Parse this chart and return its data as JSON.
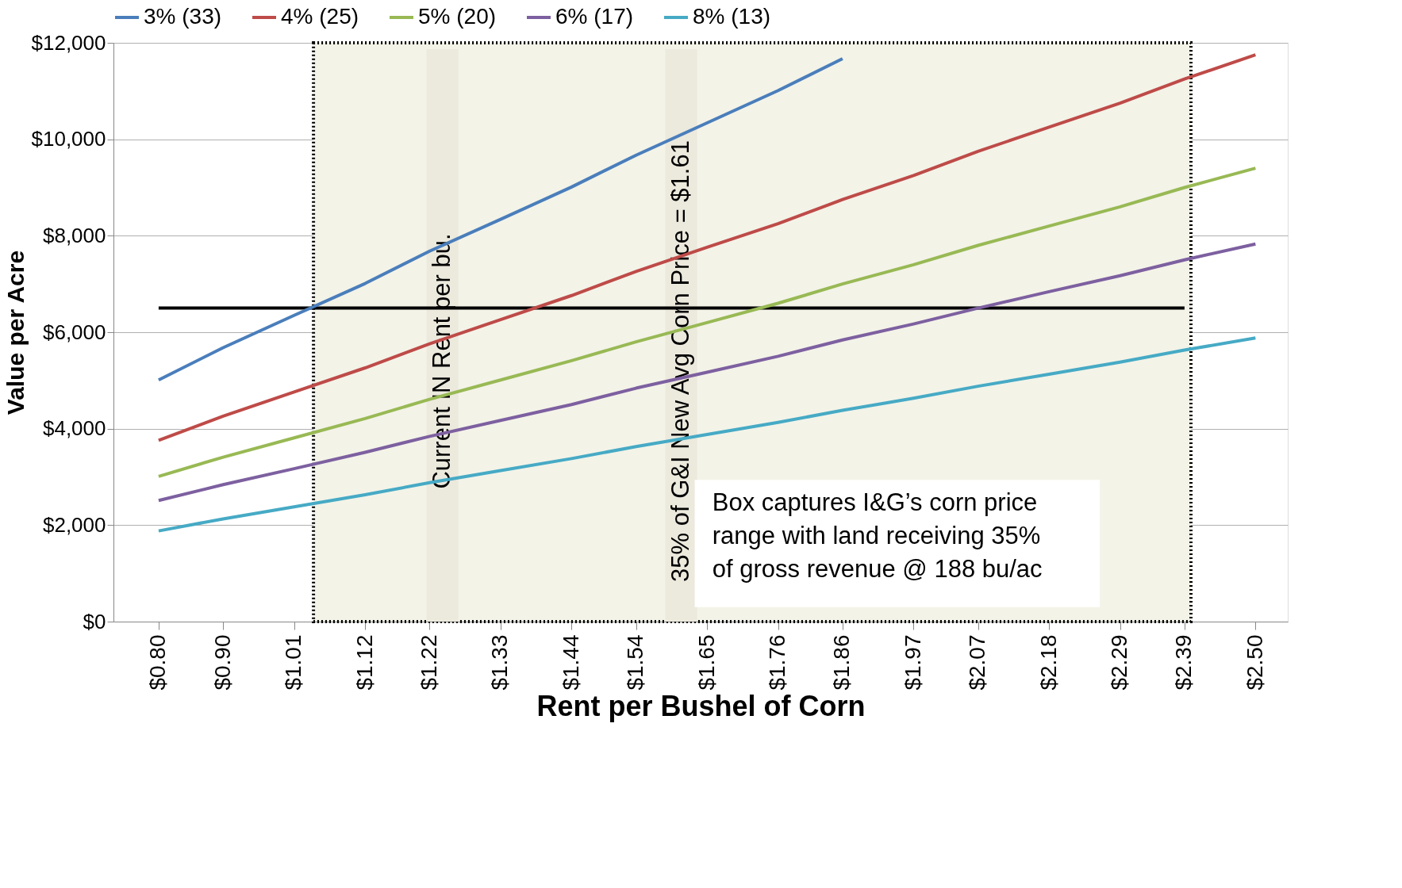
{
  "chart_data": {
    "type": "line",
    "xlabel": "Rent per Bushel of Corn",
    "ylabel": "Value per Acre",
    "x": [
      0.8,
      0.9,
      1.01,
      1.12,
      1.22,
      1.33,
      1.44,
      1.54,
      1.65,
      1.76,
      1.86,
      1.97,
      2.07,
      2.18,
      2.29,
      2.39,
      2.5
    ],
    "xlim": [
      0.73,
      2.55
    ],
    "xticks": [
      {
        "value": 0.8,
        "label": "$0.80"
      },
      {
        "value": 0.9,
        "label": "$0.90"
      },
      {
        "value": 1.01,
        "label": "$1.01"
      },
      {
        "value": 1.12,
        "label": "$1.12"
      },
      {
        "value": 1.22,
        "label": "$1.22"
      },
      {
        "value": 1.33,
        "label": "$1.33"
      },
      {
        "value": 1.44,
        "label": "$1.44"
      },
      {
        "value": 1.54,
        "label": "$1.54"
      },
      {
        "value": 1.65,
        "label": "$1.65"
      },
      {
        "value": 1.76,
        "label": "$1.76"
      },
      {
        "value": 1.86,
        "label": "$1.86"
      },
      {
        "value": 1.97,
        "label": "$1.97"
      },
      {
        "value": 2.07,
        "label": "$2.07"
      },
      {
        "value": 2.18,
        "label": "$2.18"
      },
      {
        "value": 2.29,
        "label": "$2.29"
      },
      {
        "value": 2.39,
        "label": "$2.39"
      },
      {
        "value": 2.5,
        "label": "$2.50"
      }
    ],
    "ylim": [
      0,
      12000
    ],
    "yticks": [
      {
        "value": 0,
        "label": "$0"
      },
      {
        "value": 2000,
        "label": "$2,000"
      },
      {
        "value": 4000,
        "label": "$4,000"
      },
      {
        "value": 6000,
        "label": "$6,000"
      },
      {
        "value": 8000,
        "label": "$8,000"
      },
      {
        "value": 10000,
        "label": "$10,000"
      },
      {
        "value": 12000,
        "label": "$12,000"
      }
    ],
    "grid": "y",
    "legend": "top",
    "marker": "none",
    "line_style": "solid",
    "series": [
      {
        "name": "3% (33)",
        "color": "#4a7ebb",
        "values": [
          5010,
          5680,
          6350,
          7010,
          7680,
          8340,
          9010,
          9670,
          10340,
          11010,
          11670,
          null,
          null,
          null,
          null,
          null,
          null
        ]
      },
      {
        "name": "4% (25)",
        "color": "#be4b48",
        "values": [
          3760,
          4260,
          4760,
          5260,
          5760,
          6260,
          6760,
          7260,
          7760,
          8250,
          8750,
          9250,
          9750,
          10250,
          10750,
          11250,
          11750
        ]
      },
      {
        "name": "5% (20)",
        "color": "#98b954",
        "values": [
          3010,
          3410,
          3810,
          4210,
          4610,
          5010,
          5410,
          5800,
          6200,
          6600,
          7000,
          7400,
          7800,
          8200,
          8600,
          9000,
          9400
        ]
      },
      {
        "name": "6% (17)",
        "color": "#7d60a0",
        "values": [
          2510,
          2840,
          3170,
          3510,
          3840,
          4170,
          4500,
          4840,
          5170,
          5500,
          5840,
          6170,
          6500,
          6840,
          7170,
          7500,
          7830
        ]
      },
      {
        "name": "8% (13)",
        "color": "#46aac5",
        "values": [
          1880,
          2130,
          2380,
          2630,
          2880,
          3130,
          3380,
          3630,
          3880,
          4130,
          4380,
          4630,
          4880,
          5130,
          5380,
          5630,
          5880
        ]
      },
      {
        "color": "#000000",
        "x": [
          0.8,
          2.39
        ],
        "values": [
          6500,
          6500
        ]
      }
    ],
    "bands": [
      {
        "axis": "x",
        "from": 1.04,
        "to": 2.4,
        "color": "#f3f3e8"
      }
    ],
    "ref_lines": [
      {
        "axis": "x",
        "value": 1.24,
        "label": "Current IN Rent per bu.",
        "color": "#ece9dd"
      },
      {
        "axis": "x",
        "value": 1.61,
        "label": "35% of G&I New Avg Corn Price = $1.61",
        "color": "#ece9dd"
      }
    ],
    "annotations": [
      "Box captures I&G’s corn price\nrange with land receiving 35%\nof gross revenue @ 188 bu/ac"
    ]
  }
}
